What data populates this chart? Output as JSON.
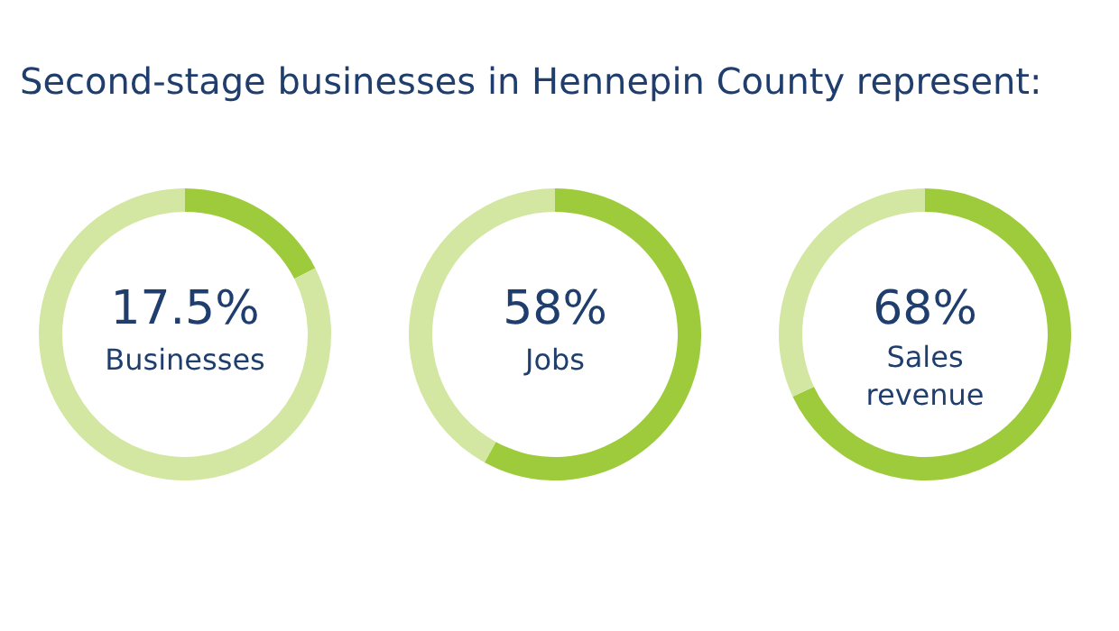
{
  "chart_data": [
    {
      "type": "donut",
      "title": "Second-stage businesses in Hennepin County represent:",
      "categories": [
        "Businesses",
        null
      ],
      "values": [
        17.5,
        82.5
      ],
      "colors": [
        "#9dcb3c",
        "#d3e7a2"
      ],
      "value_labels": [
        "17.5%",
        null
      ]
    },
    {
      "type": "donut",
      "categories": [
        "Jobs",
        null
      ],
      "values": [
        58,
        42
      ],
      "colors": [
        "#9dcb3c",
        "#d3e7a2"
      ],
      "value_labels": [
        "58%",
        null
      ]
    },
    {
      "type": "donut",
      "categories": [
        "Sales revenue",
        null
      ],
      "values": [
        68,
        32
      ],
      "colors": [
        "#9dcb3c",
        "#d3e7a2"
      ],
      "value_labels": [
        "68%",
        null
      ]
    }
  ]
}
